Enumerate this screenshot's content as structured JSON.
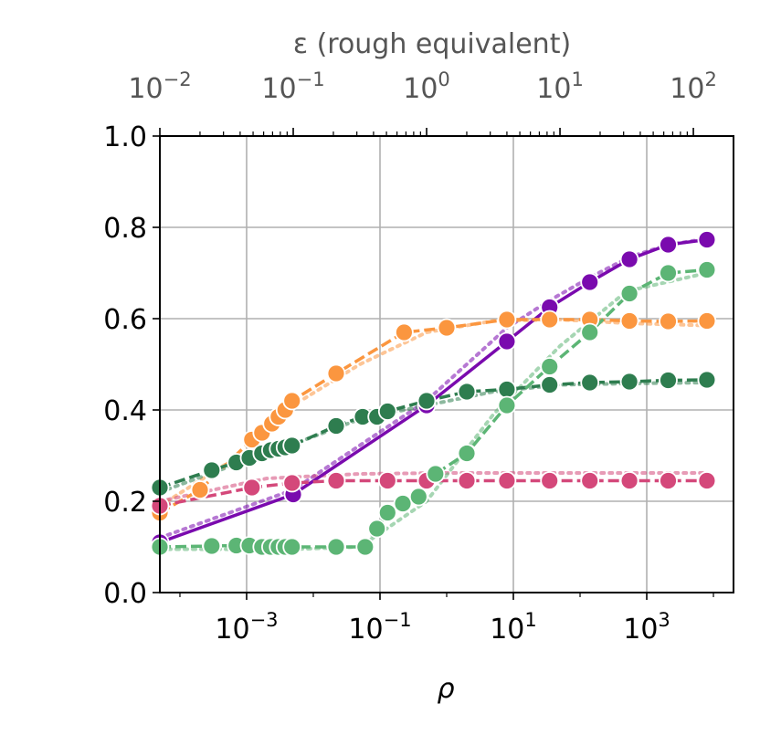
{
  "chart_data": {
    "type": "line",
    "xlabel": "ρ",
    "x2label": "ε (rough equivalent)",
    "ylabel": "",
    "xscale": "log",
    "xlim": [
      5e-05,
      20000
    ],
    "ylim": [
      0.0,
      1.0
    ],
    "grid": true,
    "legend": "none",
    "yticks": [
      "0.0",
      "0.2",
      "0.4",
      "0.6",
      "0.8",
      "1.0"
    ],
    "xticks": [
      {
        "base": "10",
        "exp": "−3",
        "value": 0.001
      },
      {
        "base": "10",
        "exp": "−1",
        "value": 0.1
      },
      {
        "base": "10",
        "exp": "1",
        "value": 10
      },
      {
        "base": "10",
        "exp": "3",
        "value": 1000
      }
    ],
    "x2ticks": [
      {
        "base": "10",
        "exp": "−2",
        "pos": 5e-05
      },
      {
        "base": "10",
        "exp": "−1",
        "pos": 0.005
      },
      {
        "base": "10",
        "exp": "0",
        "pos": 0.5
      },
      {
        "base": "10",
        "exp": "1",
        "pos": 50
      },
      {
        "base": "10",
        "exp": "2",
        "pos": 5000
      }
    ],
    "series": [
      {
        "color": "#7a0aae",
        "line": "solid",
        "x": [
          5e-05,
          0.005,
          0.5,
          8,
          35,
          140,
          550,
          2100,
          8000
        ],
        "y": [
          0.11,
          0.215,
          0.41,
          0.55,
          0.625,
          0.68,
          0.73,
          0.762,
          0.773
        ],
        "ref_x": [
          5e-05,
          0.005,
          0.5,
          8,
          35,
          140,
          550,
          2100,
          8000
        ],
        "ref_y": [
          0.12,
          0.225,
          0.42,
          0.58,
          0.64,
          0.69,
          0.735,
          0.762,
          0.775
        ]
      },
      {
        "color": "#fb963f",
        "line": "dashed",
        "x": [
          5e-05,
          0.0002,
          0.0012,
          0.0017,
          0.0024,
          0.003,
          0.0038,
          0.0048,
          0.022,
          0.23,
          1,
          8,
          35,
          140,
          550,
          2100,
          8000
        ],
        "y": [
          0.175,
          0.225,
          0.335,
          0.35,
          0.37,
          0.385,
          0.4,
          0.42,
          0.48,
          0.57,
          0.58,
          0.598,
          0.598,
          0.598,
          0.595,
          0.594,
          0.595
        ],
        "ref_x": [
          5e-05,
          0.001,
          0.005,
          0.05,
          0.5,
          5,
          50,
          500,
          8000
        ],
        "ref_y": [
          0.19,
          0.31,
          0.41,
          0.5,
          0.57,
          0.595,
          0.598,
          0.59,
          0.585
        ]
      },
      {
        "color": "#2e7d4f",
        "line": "dashed",
        "x": [
          5e-05,
          0.0003,
          0.0007,
          0.0011,
          0.0017,
          0.0023,
          0.003,
          0.0038,
          0.0048,
          0.022,
          0.055,
          0.09,
          0.13,
          0.5,
          2,
          8,
          35,
          140,
          550,
          2100,
          8000
        ],
        "y": [
          0.23,
          0.268,
          0.285,
          0.295,
          0.305,
          0.312,
          0.315,
          0.318,
          0.322,
          0.365,
          0.385,
          0.385,
          0.397,
          0.42,
          0.44,
          0.445,
          0.455,
          0.46,
          0.462,
          0.465,
          0.466
        ],
        "ref_x": [
          5e-05,
          0.001,
          0.005,
          0.05,
          0.5,
          5,
          50,
          500,
          8000
        ],
        "ref_y": [
          0.22,
          0.29,
          0.325,
          0.38,
          0.41,
          0.44,
          0.455,
          0.458,
          0.46
        ]
      },
      {
        "color": "#d4487a",
        "line": "dashed",
        "x": [
          5e-05,
          0.0012,
          0.0048,
          0.022,
          0.13,
          0.5,
          2,
          8,
          35,
          140,
          550,
          2100,
          8000
        ],
        "y": [
          0.19,
          0.23,
          0.24,
          0.245,
          0.245,
          0.245,
          0.245,
          0.245,
          0.245,
          0.245,
          0.245,
          0.245,
          0.245
        ],
        "ref_x": [
          5e-05,
          0.002,
          0.05,
          1,
          20,
          500,
          8000
        ],
        "ref_y": [
          0.2,
          0.25,
          0.26,
          0.262,
          0.262,
          0.262,
          0.262
        ]
      },
      {
        "color": "#5cb575",
        "line": "dashed",
        "x": [
          5e-05,
          0.0003,
          0.0007,
          0.0011,
          0.0017,
          0.0023,
          0.003,
          0.0038,
          0.0048,
          0.022,
          0.06,
          0.09,
          0.13,
          0.22,
          0.38,
          0.68,
          2,
          8,
          35,
          140,
          550,
          2100,
          8000
        ],
        "y": [
          0.1,
          0.102,
          0.103,
          0.103,
          0.1,
          0.1,
          0.1,
          0.1,
          0.1,
          0.1,
          0.1,
          0.14,
          0.175,
          0.195,
          0.21,
          0.26,
          0.305,
          0.41,
          0.495,
          0.57,
          0.655,
          0.7,
          0.707
        ],
        "ref_x": [
          5e-05,
          0.005,
          0.05,
          0.5,
          5,
          50,
          500,
          8000
        ],
        "ref_y": [
          0.095,
          0.095,
          0.1,
          0.2,
          0.39,
          0.54,
          0.66,
          0.7
        ]
      }
    ]
  }
}
